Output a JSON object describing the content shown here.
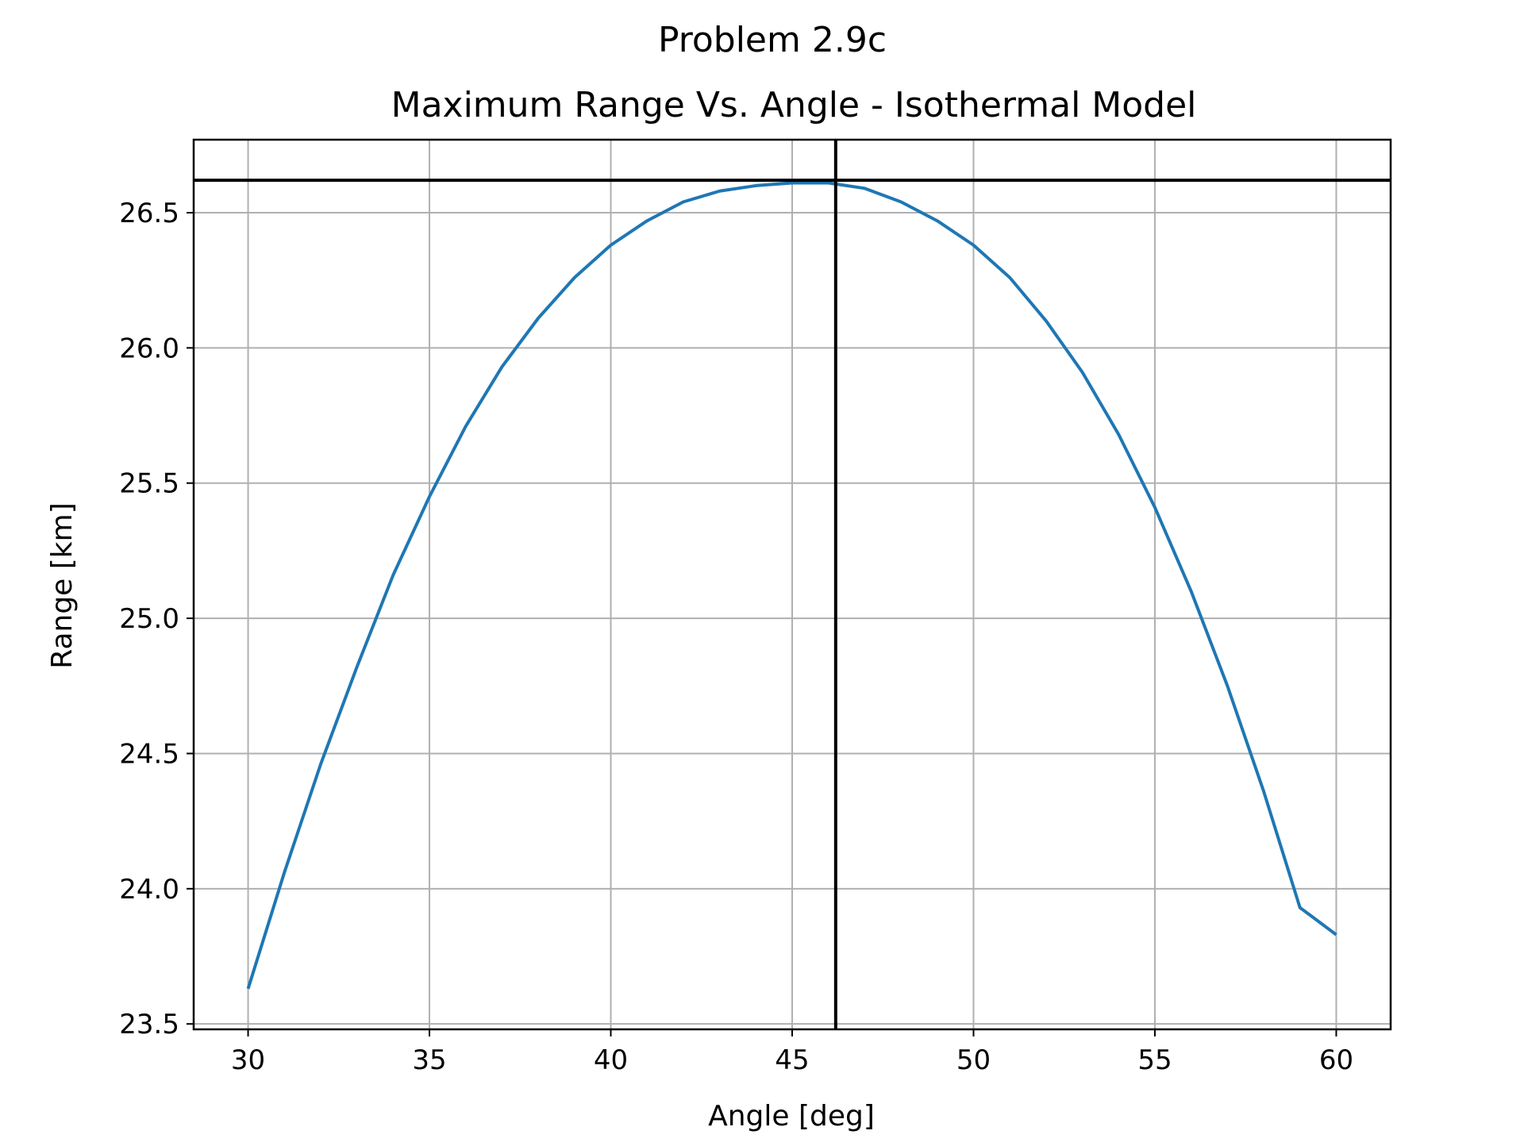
{
  "chart_data": {
    "type": "line",
    "title": "Problem 2.9c",
    "subtitle": "Maximum Range Vs. Angle - Isothermal Model",
    "xlabel": "Angle [deg]",
    "ylabel": "Range [km]",
    "xlim": [
      28.5,
      61.5
    ],
    "ylim": [
      23.48,
      26.77
    ],
    "xticks": [
      30,
      35,
      40,
      45,
      50,
      55,
      60
    ],
    "xtick_labels": [
      "30",
      "35",
      "40",
      "45",
      "50",
      "55",
      "60"
    ],
    "yticks": [
      23.5,
      24.0,
      24.5,
      25.0,
      25.5,
      26.0,
      26.5
    ],
    "ytick_labels": [
      "23.5",
      "24.0",
      "24.5",
      "25.0",
      "25.5",
      "26.0",
      "26.5"
    ],
    "grid": true,
    "series": [
      {
        "x": [
          30,
          31,
          32,
          33,
          34,
          35,
          36,
          37,
          38,
          39,
          40,
          41,
          42,
          43,
          44,
          45,
          46,
          47,
          48,
          49,
          50,
          51,
          52,
          53,
          54,
          55,
          56,
          57,
          58,
          59,
          60
        ],
        "values": [
          23.63,
          24.06,
          24.46,
          24.82,
          25.16,
          25.45,
          25.71,
          25.93,
          26.11,
          26.26,
          26.38,
          26.47,
          26.54,
          26.58,
          26.6,
          26.61,
          26.61,
          26.59,
          26.54,
          26.47,
          26.38,
          26.26,
          26.1,
          25.91,
          25.68,
          25.41,
          25.1,
          24.75,
          24.36,
          23.93,
          23.83
        ],
        "color": "#1f77b4"
      }
    ],
    "reference_lines": {
      "vertical_x": 46.2,
      "horizontal_y": 26.62,
      "color": "#000000"
    }
  }
}
